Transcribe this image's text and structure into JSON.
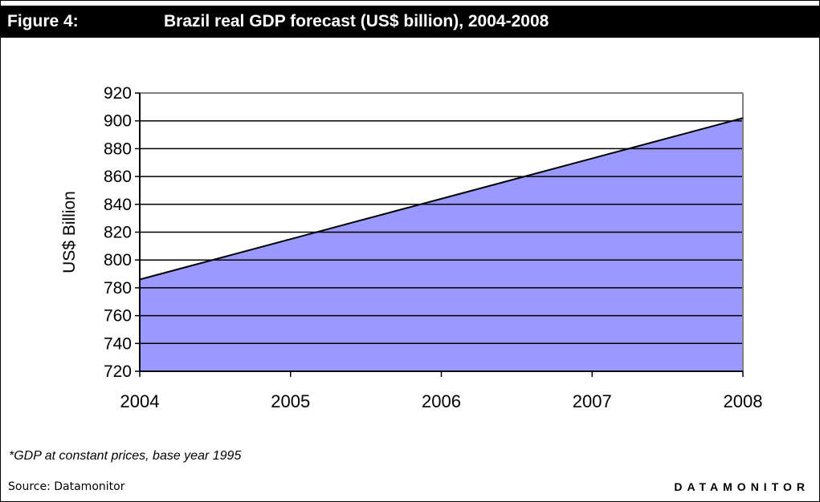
{
  "header": {
    "figure_label": "Figure 4:",
    "title": "Brazil real GDP forecast (US$ billion), 2004-2008"
  },
  "chart_data": {
    "type": "area",
    "title": "Brazil real GDP forecast (US$ billion), 2004-2008",
    "x": [
      "2004",
      "2005",
      "2006",
      "2007",
      "2008"
    ],
    "series": [
      {
        "values": [
          786,
          815,
          844,
          873,
          902
        ]
      }
    ],
    "ylabel": "US$ Billion",
    "xlabel": "",
    "ylim": [
      720,
      920
    ],
    "yticks": [
      720,
      740,
      760,
      780,
      800,
      820,
      840,
      860,
      880,
      900,
      920
    ],
    "grid": true,
    "colors": {
      "fill": "#9999ff",
      "line": "#000000",
      "grid": "#000000",
      "frame": "#808080"
    }
  },
  "footer": {
    "footnote": "*GDP at constant prices, base year 1995",
    "source": "Source: Datamonitor",
    "brand": "DATAMONITOR"
  }
}
